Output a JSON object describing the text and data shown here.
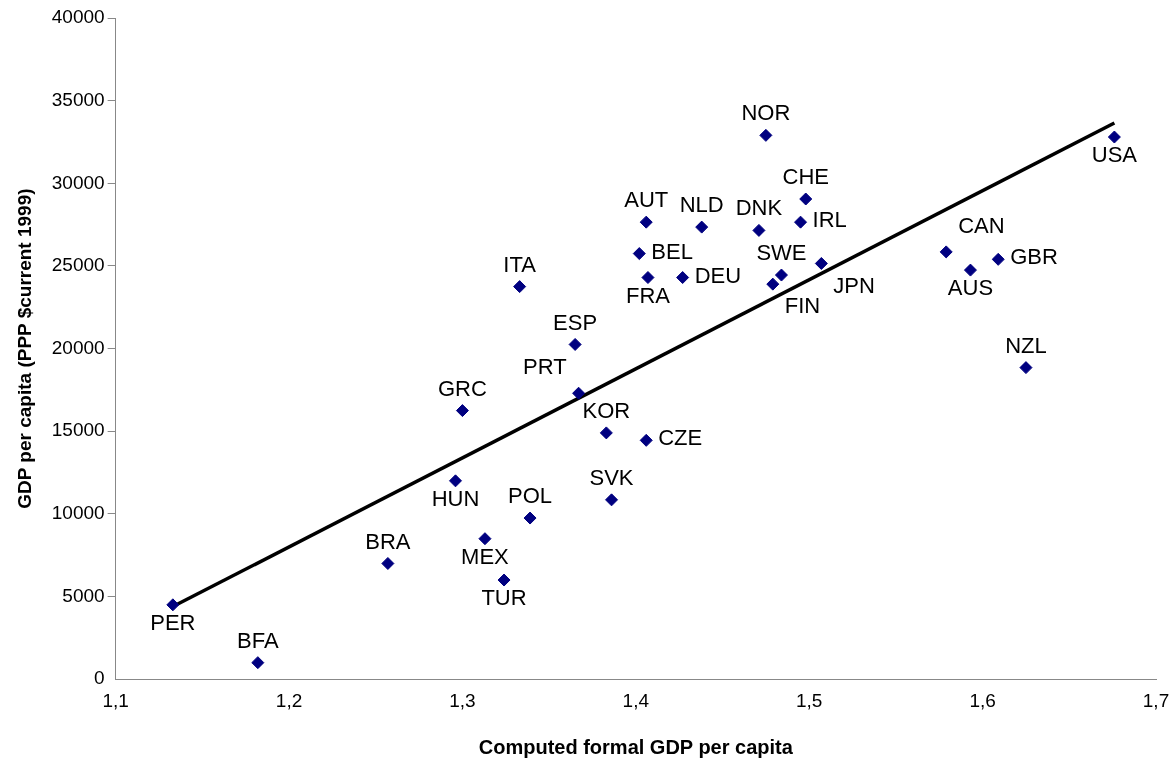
{
  "chart_data": {
    "type": "scatter",
    "xlabel": "Computed formal GDP per capita",
    "ylabel": "GDP per capita (PPP $current 1999)",
    "xlim": [
      1.1,
      1.7
    ],
    "xticks": [
      {
        "value": 1.1,
        "label": "1,1"
      },
      {
        "value": 1.2,
        "label": "1,2"
      },
      {
        "value": 1.3,
        "label": "1,3"
      },
      {
        "value": 1.4,
        "label": "1,4"
      },
      {
        "value": 1.5,
        "label": "1,5"
      },
      {
        "value": 1.6,
        "label": "1,6"
      },
      {
        "value": 1.7,
        "label": "1,7"
      }
    ],
    "ylim": [
      0,
      40000
    ],
    "yticks": [
      0,
      5000,
      10000,
      15000,
      20000,
      25000,
      30000,
      35000,
      40000
    ],
    "grid": false,
    "legend": false,
    "marker": "diamond",
    "series": [
      {
        "type": "scatter",
        "color": "#000080",
        "x": [
          1.133,
          1.182,
          1.257,
          1.296,
          1.3,
          1.313,
          1.324,
          1.333,
          1.339,
          1.365,
          1.367,
          1.383,
          1.386,
          1.402,
          1.406,
          1.406,
          1.407,
          1.427,
          1.438,
          1.471,
          1.475,
          1.479,
          1.484,
          1.495,
          1.498,
          1.507,
          1.579,
          1.593,
          1.609,
          1.625,
          1.676
        ],
        "values": [
          4500,
          1000,
          7000,
          12000,
          16250,
          8500,
          6000,
          23750,
          9750,
          20250,
          17300,
          14900,
          10850,
          25750,
          27650,
          14450,
          24300,
          24300,
          27350,
          27150,
          32900,
          23900,
          24450,
          27650,
          29050,
          25150,
          25850,
          24750,
          25400,
          18850,
          32800
        ]
      },
      {
        "type": "line",
        "color": "#000000",
        "line_style": "solid",
        "marker": "none",
        "x": [
          1.135,
          1.676
        ],
        "values": [
          4500,
          33650
        ]
      }
    ],
    "annotations": [
      {
        "text": "PER",
        "x": 1.133,
        "y": 4500
      },
      {
        "text": "BFA",
        "x": 1.182,
        "y": 1000
      },
      {
        "text": "BRA",
        "x": 1.257,
        "y": 7000
      },
      {
        "text": "HUN",
        "x": 1.296,
        "y": 12000
      },
      {
        "text": "GRC",
        "x": 1.3,
        "y": 16250
      },
      {
        "text": "MEX",
        "x": 1.313,
        "y": 8500
      },
      {
        "text": "TUR",
        "x": 1.324,
        "y": 6000
      },
      {
        "text": "ITA",
        "x": 1.333,
        "y": 23750
      },
      {
        "text": "POL",
        "x": 1.339,
        "y": 9750
      },
      {
        "text": "ESP",
        "x": 1.365,
        "y": 20250
      },
      {
        "text": "PRT",
        "x": 1.367,
        "y": 17300
      },
      {
        "text": "KOR",
        "x": 1.383,
        "y": 14900
      },
      {
        "text": "SVK",
        "x": 1.386,
        "y": 10850
      },
      {
        "text": "BEL",
        "x": 1.402,
        "y": 25750
      },
      {
        "text": "AUT",
        "x": 1.406,
        "y": 27650
      },
      {
        "text": "CZE",
        "x": 1.406,
        "y": 14450
      },
      {
        "text": "FRA",
        "x": 1.407,
        "y": 24300
      },
      {
        "text": "DEU",
        "x": 1.427,
        "y": 24300
      },
      {
        "text": "NLD",
        "x": 1.438,
        "y": 27350
      },
      {
        "text": "DNK",
        "x": 1.471,
        "y": 27150
      },
      {
        "text": "NOR",
        "x": 1.475,
        "y": 32900
      },
      {
        "text": "FIN",
        "x": 1.479,
        "y": 23900
      },
      {
        "text": "SWE",
        "x": 1.484,
        "y": 24450
      },
      {
        "text": "IRL",
        "x": 1.495,
        "y": 27650
      },
      {
        "text": "CHE",
        "x": 1.498,
        "y": 29050
      },
      {
        "text": "JPN",
        "x": 1.507,
        "y": 25150
      },
      {
        "text": "CAN",
        "x": 1.579,
        "y": 25850
      },
      {
        "text": "AUS",
        "x": 1.593,
        "y": 24750
      },
      {
        "text": "GBR",
        "x": 1.609,
        "y": 25400
      },
      {
        "text": "NZL",
        "x": 1.625,
        "y": 18850
      },
      {
        "text": "USA",
        "x": 1.676,
        "y": 32800
      }
    ]
  }
}
